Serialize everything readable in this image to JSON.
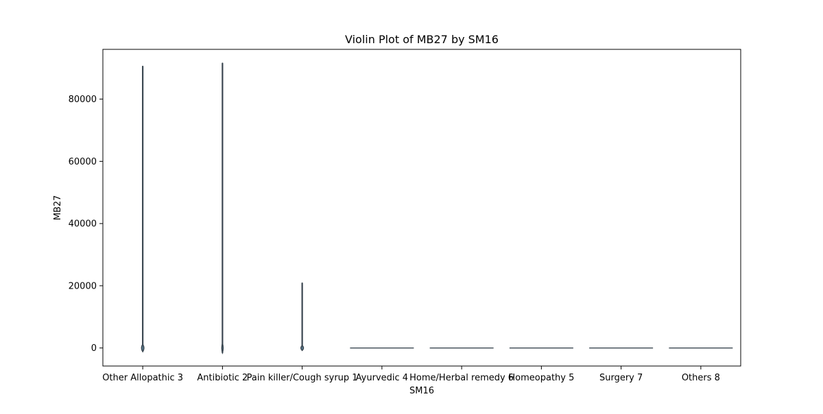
{
  "chart_data": {
    "type": "violin",
    "title": "Violin Plot of MB27 by SM16",
    "xlabel": "SM16",
    "ylabel": "MB27",
    "categories": [
      "Other Allopathic 3",
      "Antibiotic 2",
      "Pain killer/Cough syrup 1",
      "Ayurvedic 4",
      "Home/Herbal remedy 6",
      "Homeopathy 5",
      "Surgery 7",
      "Others 8"
    ],
    "yticks": [
      0,
      20000,
      40000,
      60000,
      80000
    ],
    "ytick_labels": [
      "0",
      "20000",
      "40000",
      "60000",
      "80000"
    ],
    "ylim": [
      -5800,
      96000
    ],
    "violins": [
      {
        "min": 0,
        "max": 90500,
        "bulge_center": 0,
        "bulge_half_height": 1200,
        "bulge_width": 0.06
      },
      {
        "min": -1500,
        "max": 91500,
        "bulge_center": 0,
        "bulge_half_height": 1500,
        "bulge_width": 0.035
      },
      {
        "min": -500,
        "max": 20800,
        "bulge_center": 0,
        "bulge_half_height": 800,
        "bulge_width": 0.065
      },
      {
        "min": 0,
        "max": 0,
        "bulge_center": 0,
        "bulge_half_height": 0,
        "bulge_width": 0.4
      },
      {
        "min": 0,
        "max": 0,
        "bulge_center": 0,
        "bulge_half_height": 0,
        "bulge_width": 0.4
      },
      {
        "min": 0,
        "max": 0,
        "bulge_center": 0,
        "bulge_half_height": 0,
        "bulge_width": 0.4
      },
      {
        "min": 0,
        "max": 0,
        "bulge_center": 0,
        "bulge_half_height": 0,
        "bulge_width": 0.4
      },
      {
        "min": 0,
        "max": 0,
        "bulge_center": 0,
        "bulge_half_height": 0,
        "bulge_width": 0.4
      }
    ],
    "violin_color": "#3a4650",
    "fill_color": "#5b7f95",
    "grid": false,
    "legend": "none"
  }
}
